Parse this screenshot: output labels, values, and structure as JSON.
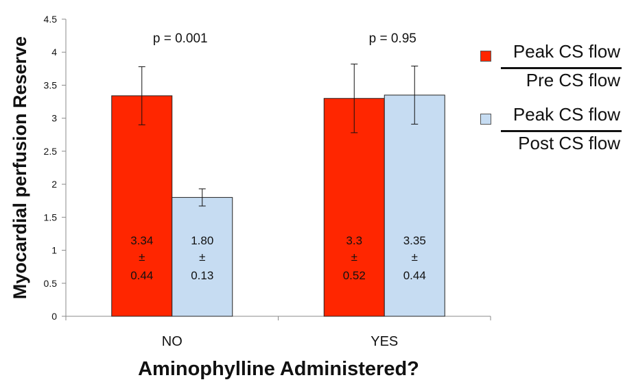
{
  "chart_data": {
    "type": "bar",
    "title": "",
    "xlabel": "Aminophylline Administered?",
    "ylabel": "Myocardial perfusion Reserve",
    "categories": [
      "NO",
      "YES"
    ],
    "ylim": [
      0,
      4.5
    ],
    "yticks": [
      "0",
      "0.5",
      "1",
      "1.5",
      "2",
      "2.5",
      "3",
      "3.5",
      "4",
      "4.5"
    ],
    "grid": false,
    "legend_position": "right",
    "series": [
      {
        "color": "#ff2600",
        "values": [
          3.34,
          3.3
        ],
        "errors_low": [
          0.44,
          0.52
        ],
        "errors_high": [
          0.44,
          0.52
        ],
        "value_labels": [
          {
            "value": "3.34",
            "pm": "±",
            "err": "0.44"
          },
          {
            "value": "3.3",
            "pm": "±",
            "err": "0.52"
          }
        ]
      },
      {
        "color": "#c6dcf2",
        "values": [
          1.8,
          3.35
        ],
        "errors_low": [
          0.13,
          0.44
        ],
        "errors_high": [
          0.13,
          0.44
        ],
        "value_labels": [
          {
            "value": "1.80",
            "pm": "±",
            "err": "0.13"
          },
          {
            "value": "3.35",
            "pm": "±",
            "err": "0.44"
          }
        ]
      }
    ],
    "annotations": [
      "p = 0.001",
      "p = 0.95"
    ],
    "legend": [
      {
        "numerator": "Peak CS flow",
        "denominator": "Pre CS flow",
        "color": "#ff2600"
      },
      {
        "numerator": "Peak CS flow",
        "denominator": "Post CS flow",
        "color": "#c6dcf2"
      }
    ]
  }
}
